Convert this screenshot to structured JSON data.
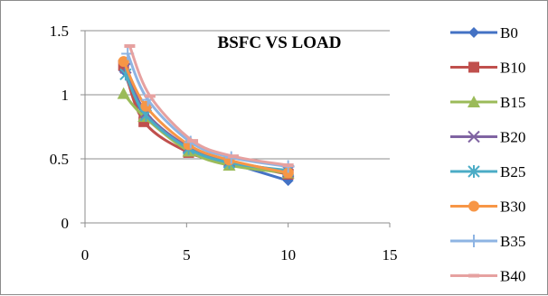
{
  "chart_data": {
    "type": "line",
    "title": "BSFC VS LOAD",
    "xlabel": "",
    "ylabel": "",
    "xlim": [
      0,
      15
    ],
    "ylim": [
      0,
      1.5
    ],
    "x_ticks": [
      "0",
      "5",
      "10",
      "15"
    ],
    "y_ticks": [
      "0",
      "0.5",
      "1",
      "1.5"
    ],
    "grid": "horizontal",
    "legend_position": "right",
    "series": [
      {
        "name": "B0",
        "color": "#4472C4",
        "marker": "diamond",
        "points": [
          [
            1.9,
            1.19
          ],
          [
            2.9,
            0.85
          ],
          [
            5.1,
            0.57
          ],
          [
            7.1,
            0.47
          ],
          [
            10.0,
            0.33
          ]
        ]
      },
      {
        "name": "B10",
        "color": "#C0504D",
        "marker": "square",
        "points": [
          [
            1.9,
            1.23
          ],
          [
            2.9,
            0.79
          ],
          [
            5.1,
            0.55
          ],
          [
            7.1,
            0.47
          ],
          [
            10.0,
            0.38
          ]
        ]
      },
      {
        "name": "B15",
        "color": "#9BBB59",
        "marker": "triangle",
        "points": [
          [
            1.9,
            1.01
          ],
          [
            2.9,
            0.83
          ],
          [
            5.1,
            0.56
          ],
          [
            7.1,
            0.45
          ],
          [
            10.0,
            0.39
          ]
        ]
      },
      {
        "name": "B20",
        "color": "#8064A2",
        "marker": "x",
        "points": [
          [
            2.0,
            1.21
          ],
          [
            3.0,
            0.86
          ],
          [
            5.1,
            0.59
          ],
          [
            7.1,
            0.48
          ],
          [
            10.0,
            0.4
          ]
        ]
      },
      {
        "name": "B25",
        "color": "#4BACC6",
        "marker": "star",
        "points": [
          [
            2.0,
            1.16
          ],
          [
            3.0,
            0.84
          ],
          [
            5.1,
            0.58
          ],
          [
            7.1,
            0.47
          ],
          [
            10.0,
            0.41
          ]
        ]
      },
      {
        "name": "B30",
        "color": "#F79646",
        "marker": "circle",
        "points": [
          [
            1.9,
            1.26
          ],
          [
            3.0,
            0.91
          ],
          [
            5.1,
            0.61
          ],
          [
            7.1,
            0.49
          ],
          [
            10.0,
            0.39
          ]
        ]
      },
      {
        "name": "B35",
        "color": "#8EB4E3",
        "marker": "plus",
        "points": [
          [
            2.1,
            1.32
          ],
          [
            3.1,
            0.96
          ],
          [
            5.2,
            0.63
          ],
          [
            7.2,
            0.51
          ],
          [
            10.0,
            0.44
          ]
        ]
      },
      {
        "name": "B40",
        "color": "#E6A1A0",
        "marker": "dash",
        "points": [
          [
            2.2,
            1.38
          ],
          [
            3.2,
            0.99
          ],
          [
            5.3,
            0.64
          ],
          [
            7.3,
            0.52
          ],
          [
            10.0,
            0.45
          ]
        ]
      }
    ]
  }
}
